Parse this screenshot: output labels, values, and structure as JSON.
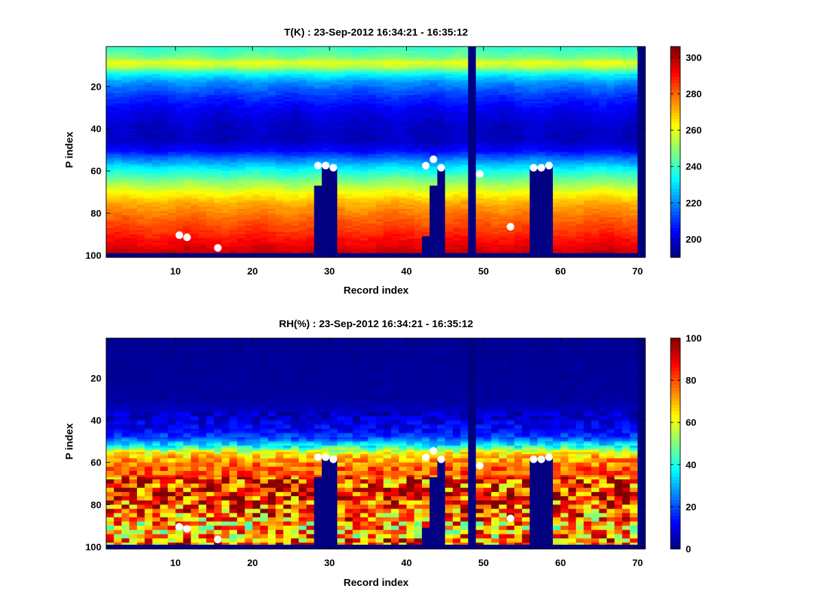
{
  "chart_data": [
    {
      "type": "heatmap",
      "title": "T(K) : 23-Sep-2012 16:34:21 - 16:35:12",
      "xlabel": "Record index",
      "ylabel": "P index",
      "xlim": [
        1,
        71
      ],
      "ylim": [
        1,
        101
      ],
      "y_reversed": true,
      "x_ticks": [
        10,
        20,
        30,
        40,
        50,
        60,
        70
      ],
      "y_ticks": [
        20,
        40,
        60,
        80,
        100
      ],
      "colormap": "jet",
      "clim": [
        190,
        306
      ],
      "colorbar_ticks": [
        200,
        220,
        240,
        260,
        280,
        300
      ],
      "profile_mid": [
        [
          2,
          240
        ],
        [
          6,
          248
        ],
        [
          8,
          260
        ],
        [
          10,
          255
        ],
        [
          14,
          232
        ],
        [
          18,
          220
        ],
        [
          24,
          210
        ],
        [
          30,
          203
        ],
        [
          38,
          198
        ],
        [
          45,
          197
        ],
        [
          50,
          205
        ],
        [
          55,
          222
        ],
        [
          60,
          237
        ],
        [
          65,
          250
        ],
        [
          70,
          262
        ],
        [
          75,
          272
        ],
        [
          82,
          280
        ],
        [
          90,
          288
        ],
        [
          96,
          295
        ],
        [
          99,
          299
        ]
      ],
      "masked_cells": {
        "bottom_rows_from": 99,
        "full_columns": [
          48,
          70
        ],
        "columns_from_row": [
          [
            28,
            67
          ],
          [
            29,
            58
          ],
          [
            30,
            59
          ],
          [
            42,
            91
          ],
          [
            43,
            67
          ],
          [
            44,
            59
          ],
          [
            56,
            59
          ],
          [
            57,
            59
          ],
          [
            58,
            58
          ]
        ]
      },
      "markers": [
        {
          "record": 10,
          "p": 90
        },
        {
          "record": 11,
          "p": 91
        },
        {
          "record": 15,
          "p": 96
        },
        {
          "record": 28,
          "p": 57
        },
        {
          "record": 29,
          "p": 57
        },
        {
          "record": 30,
          "p": 58
        },
        {
          "record": 42,
          "p": 57
        },
        {
          "record": 43,
          "p": 54
        },
        {
          "record": 44,
          "p": 58
        },
        {
          "record": 49,
          "p": 61
        },
        {
          "record": 53,
          "p": 86
        },
        {
          "record": 56,
          "p": 58
        },
        {
          "record": 57,
          "p": 58
        },
        {
          "record": 58,
          "p": 57
        }
      ]
    },
    {
      "type": "heatmap",
      "title": "RH(%) : 23-Sep-2012 16:34:21 - 16:35:12",
      "xlabel": "Record index",
      "ylabel": "P index",
      "xlim": [
        1,
        71
      ],
      "ylim": [
        1,
        101
      ],
      "y_reversed": true,
      "x_ticks": [
        10,
        20,
        30,
        40,
        50,
        60,
        70
      ],
      "y_ticks": [
        20,
        40,
        60,
        80,
        100
      ],
      "colormap": "jet",
      "clim": [
        0,
        100
      ],
      "colorbar_ticks": [
        0,
        20,
        40,
        60,
        80,
        100
      ],
      "profile_mid": [
        [
          2,
          2
        ],
        [
          30,
          3
        ],
        [
          38,
          8
        ],
        [
          44,
          12
        ],
        [
          48,
          20
        ],
        [
          52,
          40
        ],
        [
          55,
          62
        ],
        [
          58,
          72
        ],
        [
          62,
          78
        ],
        [
          66,
          80
        ],
        [
          70,
          82
        ],
        [
          75,
          86
        ],
        [
          80,
          82
        ],
        [
          85,
          76
        ],
        [
          90,
          68
        ],
        [
          95,
          72
        ],
        [
          99,
          80
        ]
      ],
      "masked_cells": {
        "bottom_rows_from": 99,
        "full_columns": [
          48,
          70
        ],
        "columns_from_row": [
          [
            28,
            67
          ],
          [
            29,
            58
          ],
          [
            30,
            59
          ],
          [
            42,
            91
          ],
          [
            43,
            67
          ],
          [
            44,
            59
          ],
          [
            56,
            59
          ],
          [
            57,
            59
          ],
          [
            58,
            58
          ]
        ]
      },
      "markers": [
        {
          "record": 10,
          "p": 90
        },
        {
          "record": 11,
          "p": 91
        },
        {
          "record": 15,
          "p": 96
        },
        {
          "record": 28,
          "p": 57
        },
        {
          "record": 29,
          "p": 57
        },
        {
          "record": 30,
          "p": 58
        },
        {
          "record": 42,
          "p": 57
        },
        {
          "record": 43,
          "p": 54
        },
        {
          "record": 44,
          "p": 58
        },
        {
          "record": 49,
          "p": 61
        },
        {
          "record": 53,
          "p": 86
        },
        {
          "record": 56,
          "p": 58
        },
        {
          "record": 57,
          "p": 58
        },
        {
          "record": 58,
          "p": 57
        }
      ]
    }
  ]
}
